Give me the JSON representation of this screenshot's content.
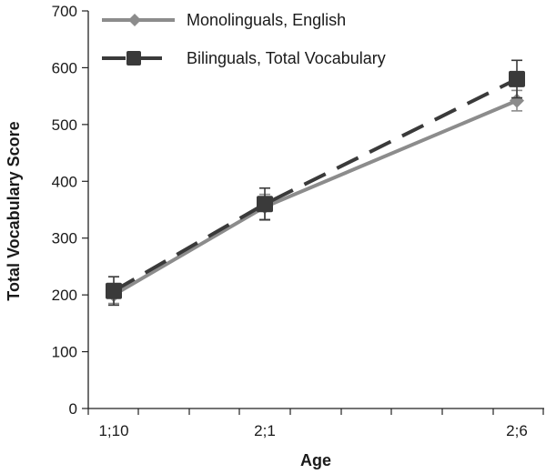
{
  "chart_data": {
    "type": "line",
    "xlabel": "Age",
    "ylabel": "Total Vocabulary Score",
    "categories": [
      "1;10",
      "2;1",
      "2;6"
    ],
    "ylim": [
      0,
      700
    ],
    "yticks": [
      0,
      100,
      200,
      300,
      400,
      500,
      600,
      700
    ],
    "grid": false,
    "legend_position": "top-left",
    "series": [
      {
        "name": "Monolinguals, English",
        "values": [
          200,
          355,
          542
        ],
        "error": [
          15,
          22,
          18
        ],
        "marker": "diamond",
        "line_style": "solid",
        "color": "#8c8c8c"
      },
      {
        "name": "Bilinguals, Total Vocabulary",
        "values": [
          207,
          360,
          580
        ],
        "error": [
          25,
          28,
          33
        ],
        "marker": "square",
        "line_style": "dashed",
        "color": "#3a3a3a"
      }
    ]
  }
}
